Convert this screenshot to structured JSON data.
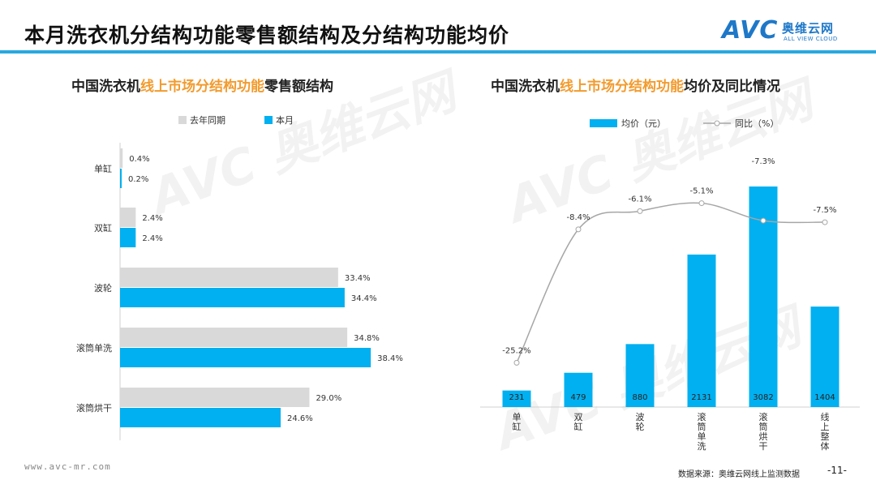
{
  "page": {
    "title": "本月洗衣机分结构功能零售额结构及分结构功能均价",
    "logo_avc": "AVC",
    "logo_cn": "奥维云网",
    "logo_en": "ALL VIEW CLOUD",
    "footer_url": "www.avc-mr.com",
    "footer_source": "数据来源：奥维云网线上监测数据",
    "page_number": "-11-"
  },
  "left_title": {
    "prefix": "中国洗衣机",
    "highlight": "线上市场分结构功能",
    "suffix": "零售额结构"
  },
  "right_title": {
    "prefix": "中国洗衣机",
    "highlight": "线上市场分结构功能",
    "suffix": "均价及同比情况"
  },
  "colors": {
    "accent_blue": "#00b0f0",
    "grey_bar": "#d9d9d9",
    "highlight_orange": "#f29b2e",
    "line_grey": "#a6a6a6",
    "title_rule": "#29a8e0"
  },
  "chart_data": [
    {
      "type": "bar",
      "orientation": "horizontal",
      "categories": [
        "单缸",
        "双缸",
        "波轮",
        "滚筒单洗",
        "滚筒烘干"
      ],
      "series": [
        {
          "name": "去年同期",
          "values": [
            0.4,
            2.4,
            33.4,
            34.8,
            29.0
          ],
          "labels": [
            "0.4%",
            "2.4%",
            "33.4%",
            "34.8%",
            "29.0%"
          ],
          "color": "#d9d9d9"
        },
        {
          "name": "本月",
          "values": [
            0.2,
            2.4,
            34.4,
            38.4,
            24.6
          ],
          "labels": [
            "0.2%",
            "2.4%",
            "34.4%",
            "38.4%",
            "24.6%"
          ],
          "color": "#00b0f0"
        }
      ],
      "xlim": [
        0,
        45
      ],
      "legend_position": "top"
    },
    {
      "type": "bar",
      "categories": [
        "单缸",
        "双缸",
        "波轮",
        "滚筒单洗",
        "滚筒烘干",
        "线上整体"
      ],
      "series": [
        {
          "name": "均价（元）",
          "kind": "bar",
          "values": [
            231,
            479,
            880,
            2131,
            3082,
            1404
          ],
          "labels": [
            "231",
            "479",
            "880",
            "2131",
            "3082",
            "1404"
          ],
          "color": "#00b0f0"
        },
        {
          "name": "同比（%）",
          "kind": "line",
          "values": [
            -25.2,
            -8.4,
            -6.1,
            -5.1,
            -7.3,
            -7.5
          ],
          "labels": [
            "-25.2%",
            "-8.4%",
            "-6.1%",
            "-5.1%",
            "-7.3%",
            "-7.5%"
          ],
          "color": "#a6a6a6"
        }
      ],
      "ylim": [
        0,
        3200
      ],
      "y2lim": [
        -27,
        -3
      ],
      "legend_position": "top"
    }
  ]
}
